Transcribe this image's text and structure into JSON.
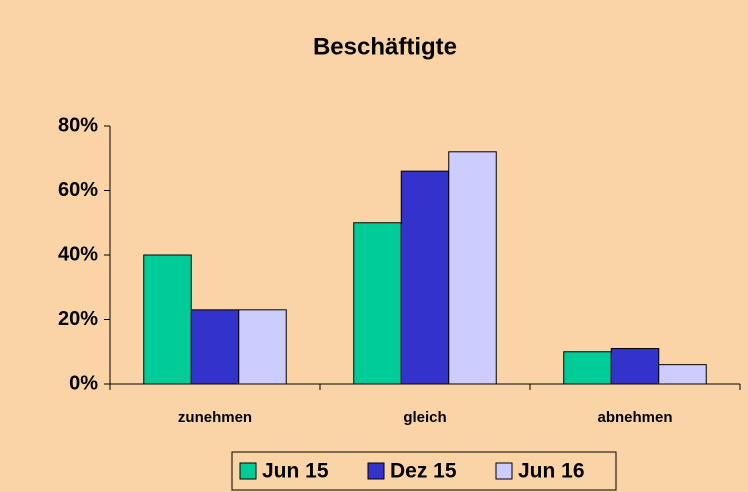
{
  "chart_data": {
    "type": "bar",
    "title": "Beschäftigte",
    "categories": [
      "zunehmen",
      "gleich",
      "abnehmen"
    ],
    "series": [
      {
        "name": "Jun 15",
        "color": "#00cc99",
        "values": [
          40,
          50,
          10
        ]
      },
      {
        "name": "Dez 15",
        "color": "#3333cc",
        "values": [
          23,
          66,
          11
        ]
      },
      {
        "name": "Jun 16",
        "color": "#ccccff",
        "values": [
          23,
          72,
          6
        ]
      }
    ],
    "ylim": [
      0,
      80
    ],
    "yticks": [
      {
        "value": 0,
        "label": "0%"
      },
      {
        "value": 20,
        "label": "20%"
      },
      {
        "value": 40,
        "label": "40%"
      },
      {
        "value": 60,
        "label": "60%"
      },
      {
        "value": 80,
        "label": "80%"
      }
    ],
    "grid": false,
    "legend": "bottom"
  }
}
